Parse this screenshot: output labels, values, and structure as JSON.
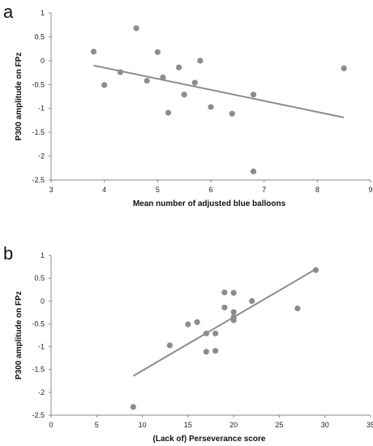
{
  "chart_data": [
    {
      "type": "scatter",
      "panel_label": "a",
      "title": "",
      "xlabel": "Mean number of adjusted blue balloons",
      "ylabel": "P300 amplitude on FPz",
      "xlim": [
        3,
        9
      ],
      "ylim": [
        -2.5,
        1
      ],
      "xticks": [
        3,
        4,
        5,
        6,
        7,
        8,
        9
      ],
      "yticks": [
        1,
        0.5,
        0,
        -0.5,
        -1,
        -1.5,
        -2,
        -2.5
      ],
      "xtick_labels": [
        "3",
        "4",
        "5",
        "6",
        "7",
        "8",
        "9"
      ],
      "ytick_labels": [
        "1",
        "0.5",
        "0",
        "-0.5",
        "-1",
        "-1.5",
        "-2",
        "-2.5"
      ],
      "grid": false,
      "marker_color": "#8c8c8c",
      "line_color": "#8c8c8c",
      "points": [
        {
          "x": 3.8,
          "y": 0.19
        },
        {
          "x": 4.0,
          "y": -0.51
        },
        {
          "x": 4.3,
          "y": -0.24
        },
        {
          "x": 4.6,
          "y": 0.68
        },
        {
          "x": 4.8,
          "y": -0.42
        },
        {
          "x": 5.0,
          "y": 0.18
        },
        {
          "x": 5.1,
          "y": -0.35
        },
        {
          "x": 5.2,
          "y": -1.09
        },
        {
          "x": 5.4,
          "y": -0.14
        },
        {
          "x": 5.5,
          "y": -0.71
        },
        {
          "x": 5.7,
          "y": -0.46
        },
        {
          "x": 5.8,
          "y": 0.0
        },
        {
          "x": 6.0,
          "y": -0.97
        },
        {
          "x": 6.4,
          "y": -1.11
        },
        {
          "x": 6.8,
          "y": -0.71
        },
        {
          "x": 6.8,
          "y": -2.32
        },
        {
          "x": 8.5,
          "y": -0.16
        }
      ],
      "trendline": {
        "x": [
          3.8,
          8.5
        ],
        "y": [
          -0.1,
          -1.19
        ]
      }
    },
    {
      "type": "scatter",
      "panel_label": "b",
      "title": "",
      "xlabel": "(Lack of) Perseverance score",
      "ylabel": "P300 amplitude on FPz",
      "xlim": [
        0,
        35
      ],
      "ylim": [
        -2.5,
        1
      ],
      "xticks": [
        0,
        5,
        10,
        15,
        20,
        25,
        30,
        35
      ],
      "yticks": [
        1,
        0.5,
        0,
        -0.5,
        -1,
        -1.5,
        -2,
        -2.5
      ],
      "xtick_labels": [
        "0",
        "5",
        "10",
        "15",
        "20",
        "25",
        "30",
        "35"
      ],
      "ytick_labels": [
        "1",
        "0.5",
        "0",
        "-0.5",
        "-1",
        "-1.5",
        "-2",
        "-2.5"
      ],
      "grid": false,
      "marker_color": "#8c8c8c",
      "line_color": "#8c8c8c",
      "points": [
        {
          "x": 9,
          "y": -2.32
        },
        {
          "x": 13,
          "y": -0.97
        },
        {
          "x": 15,
          "y": -0.51
        },
        {
          "x": 16,
          "y": -0.46
        },
        {
          "x": 17,
          "y": -0.71
        },
        {
          "x": 17,
          "y": -1.11
        },
        {
          "x": 18,
          "y": -0.71
        },
        {
          "x": 18,
          "y": -1.09
        },
        {
          "x": 19,
          "y": 0.19
        },
        {
          "x": 19,
          "y": -0.14
        },
        {
          "x": 20,
          "y": 0.18
        },
        {
          "x": 20,
          "y": -0.24
        },
        {
          "x": 20,
          "y": -0.35
        },
        {
          "x": 20,
          "y": -0.42
        },
        {
          "x": 22,
          "y": 0.0
        },
        {
          "x": 27,
          "y": -0.16
        },
        {
          "x": 29,
          "y": 0.68
        }
      ],
      "trendline": {
        "x": [
          9,
          29
        ],
        "y": [
          -1.64,
          0.7
        ]
      }
    }
  ]
}
